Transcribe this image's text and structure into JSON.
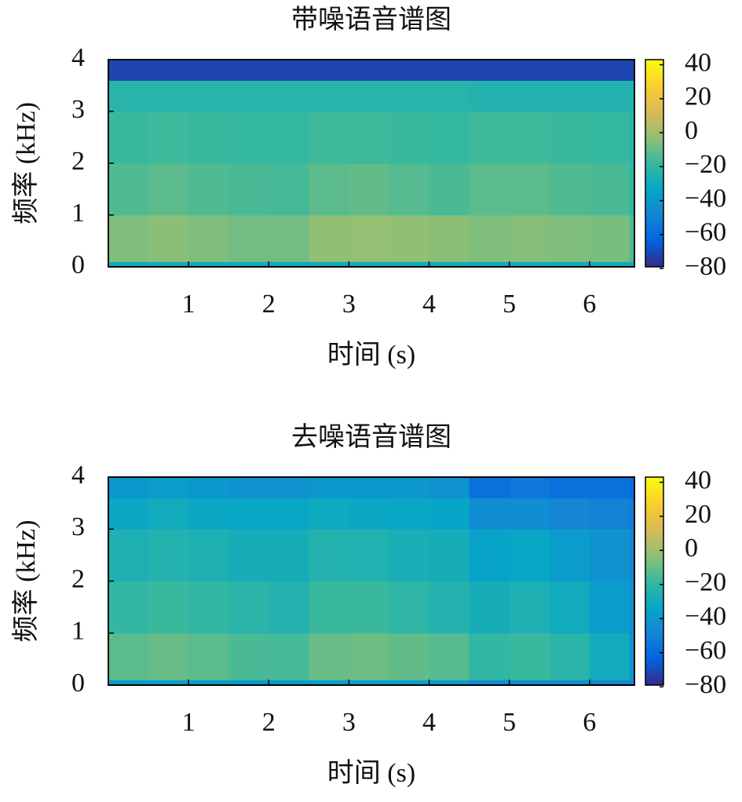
{
  "chart_data": [
    {
      "type": "heatmap",
      "title": "带噪语音谱图",
      "xlabel": "时间 (s)",
      "ylabel": "频率 (kHz)",
      "colormap": "parula",
      "x_bins": [
        0,
        0.5,
        1,
        1.5,
        2,
        2.5,
        3,
        3.5,
        4,
        4.5,
        5,
        5.5,
        6,
        6.5,
        6.56
      ],
      "y_bins": [
        0,
        0.1,
        1,
        2,
        3,
        3.6,
        4
      ],
      "z": [
        [
          -30,
          -30,
          -30,
          -30,
          -30,
          -30,
          -30,
          -30,
          -30,
          -30,
          -30,
          -30,
          -30,
          -30
        ],
        [
          -6,
          -4,
          -6,
          -8,
          -8,
          -3,
          -2,
          -3,
          -4,
          -6,
          -5,
          -6,
          -7,
          -15
        ],
        [
          -14,
          -12,
          -14,
          -15,
          -16,
          -12,
          -11,
          -13,
          -15,
          -12,
          -12,
          -14,
          -15,
          -20
        ],
        [
          -18,
          -17,
          -18,
          -19,
          -19,
          -17,
          -17,
          -18,
          -19,
          -17,
          -17,
          -18,
          -19,
          -22
        ],
        [
          -23,
          -23,
          -23,
          -23,
          -23,
          -23,
          -23,
          -23,
          -23,
          -24,
          -24,
          -24,
          -24,
          -25
        ],
        [
          -72,
          -72,
          -72,
          -72,
          -72,
          -72,
          -72,
          -72,
          -72,
          -72,
          -72,
          -72,
          -72,
          -72
        ]
      ],
      "xlim": [
        0,
        6.56
      ],
      "ylim": [
        0,
        4
      ],
      "xticks": [
        1,
        2,
        3,
        4,
        5,
        6
      ],
      "yticks": [
        0,
        1,
        2,
        3,
        4
      ],
      "zlim": [
        -79,
        43
      ],
      "zticks": [
        {
          "value": -80,
          "label": "−80"
        },
        {
          "value": -60,
          "label": "−60"
        },
        {
          "value": -40,
          "label": "−40"
        },
        {
          "value": -20,
          "label": "−20"
        },
        0,
        20,
        40
      ]
    },
    {
      "type": "heatmap",
      "title": "去噪语音谱图",
      "xlabel": "时间 (s)",
      "ylabel": "频率 (kHz)",
      "colormap": "parula",
      "x_bins": [
        0,
        0.5,
        1,
        1.5,
        2,
        2.5,
        3,
        3.5,
        4,
        4.5,
        5,
        5.5,
        6,
        6.5,
        6.56
      ],
      "y_bins": [
        0,
        0.1,
        1,
        2,
        3,
        3.6,
        4
      ],
      "z": [
        [
          -38,
          -38,
          -38,
          -38,
          -38,
          -38,
          -38,
          -38,
          -38,
          -45,
          -45,
          -45,
          -48,
          -48
        ],
        [
          -12,
          -10,
          -12,
          -15,
          -16,
          -10,
          -9,
          -11,
          -13,
          -20,
          -18,
          -22,
          -30,
          -42
        ],
        [
          -20,
          -18,
          -20,
          -22,
          -24,
          -18,
          -18,
          -21,
          -24,
          -28,
          -26,
          -30,
          -38,
          -45
        ],
        [
          -26,
          -24,
          -26,
          -28,
          -28,
          -24,
          -25,
          -27,
          -28,
          -35,
          -33,
          -38,
          -42,
          -48
        ],
        [
          -32,
          -30,
          -32,
          -33,
          -33,
          -31,
          -32,
          -33,
          -34,
          -45,
          -45,
          -48,
          -50,
          -52
        ],
        [
          -40,
          -38,
          -40,
          -42,
          -42,
          -40,
          -40,
          -40,
          -42,
          -58,
          -55,
          -58,
          -58,
          -60
        ]
      ],
      "xlim": [
        0,
        6.56
      ],
      "ylim": [
        0,
        4
      ],
      "xticks": [
        1,
        2,
        3,
        4,
        5,
        6
      ],
      "yticks": [
        0,
        1,
        2,
        3,
        4
      ],
      "zlim": [
        -79,
        43
      ],
      "zticks": [
        {
          "value": -80,
          "label": "−80"
        },
        {
          "value": -60,
          "label": "−60"
        },
        {
          "value": -40,
          "label": "−40"
        },
        {
          "value": -20,
          "label": "−20"
        },
        0,
        20,
        40
      ]
    }
  ]
}
